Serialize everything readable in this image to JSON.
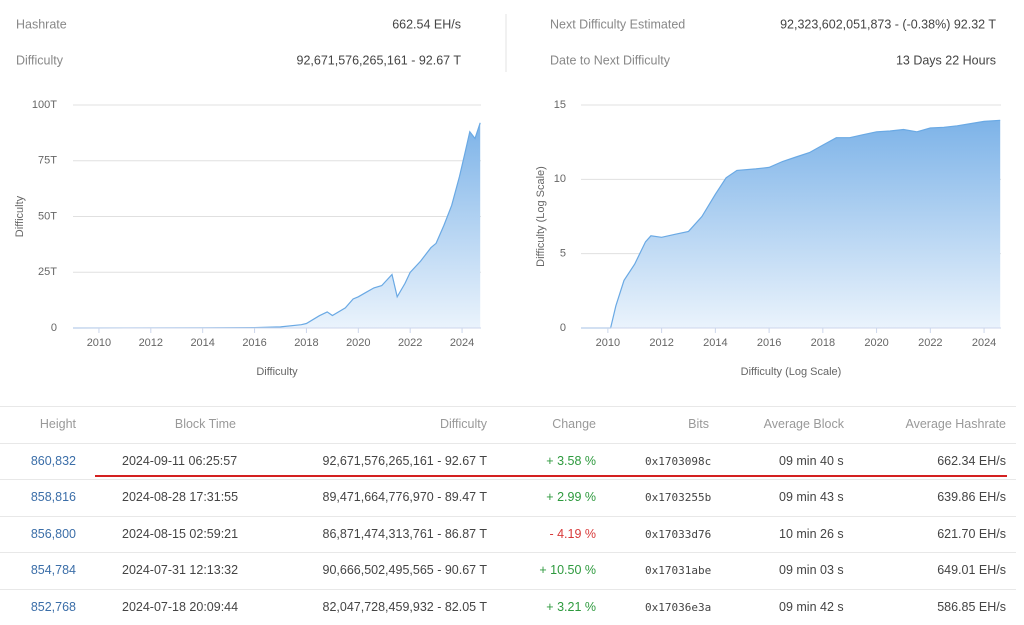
{
  "stats": {
    "hashrate_label": "Hashrate",
    "hashrate_value": "662.54 EH/s",
    "difficulty_label": "Difficulty",
    "difficulty_value": "92,671,576,265,161 - 92.67 T",
    "next_label": "Next Difficulty Estimated",
    "next_value": "92,323,602,051,873 - (-0.38%) 92.32 T",
    "date_label": "Date to Next Difficulty",
    "date_value": "13 Days 22 Hours"
  },
  "chart_data": [
    {
      "type": "area",
      "xlabel": "Difficulty",
      "ylabel": "Difficulty",
      "color": "#6aa9e4",
      "x": [
        2009.0,
        2014.0,
        2016.0,
        2017.0,
        2017.8,
        2018.0,
        2018.5,
        2018.8,
        2019.0,
        2019.5,
        2019.8,
        2020.0,
        2020.3,
        2020.6,
        2020.9,
        2021.3,
        2021.5,
        2021.8,
        2022.0,
        2022.4,
        2022.8,
        2023.0,
        2023.3,
        2023.6,
        2023.9,
        2024.1,
        2024.3,
        2024.5,
        2024.7
      ],
      "values": [
        0,
        0.05,
        0.2,
        0.5,
        1.5,
        2,
        5.5,
        7.2,
        5.6,
        9,
        13,
        14,
        16,
        18,
        19,
        24,
        14,
        20,
        25,
        30,
        36,
        38,
        46,
        55,
        68,
        78,
        88,
        85,
        92
      ],
      "xlim": [
        2009.0,
        2024.73
      ],
      "xticks": [
        2010,
        2012,
        2014,
        2016,
        2018,
        2020,
        2022,
        2024
      ],
      "ylim": [
        0,
        100
      ],
      "yticks": [
        0,
        {
          "value": 25,
          "label": "25T"
        },
        {
          "value": 50,
          "label": "50T"
        },
        {
          "value": 75,
          "label": "75T"
        },
        {
          "value": 100,
          "label": "100T"
        }
      ],
      "grid": true
    },
    {
      "type": "area",
      "xlabel": "Difficulty (Log Scale)",
      "ylabel": "Difficulty (Log Scale)",
      "color": "#6aa9e4",
      "x": [
        2009.0,
        2010.1,
        2010.3,
        2010.6,
        2011.0,
        2011.4,
        2011.6,
        2012.0,
        2012.5,
        2013.0,
        2013.5,
        2014.0,
        2014.4,
        2014.8,
        2015.5,
        2016.0,
        2016.5,
        2017.0,
        2017.5,
        2018.0,
        2018.5,
        2019.0,
        2019.5,
        2020.0,
        2020.5,
        2021.0,
        2021.5,
        2022.0,
        2022.5,
        2023.0,
        2023.5,
        2024.0,
        2024.6
      ],
      "values": [
        0,
        0,
        1.5,
        3.2,
        4.3,
        5.8,
        6.2,
        6.1,
        6.3,
        6.5,
        7.5,
        9.0,
        10.1,
        10.6,
        10.7,
        10.8,
        11.2,
        11.5,
        11.8,
        12.3,
        12.8,
        12.8,
        13.0,
        13.2,
        13.25,
        13.35,
        13.2,
        13.45,
        13.5,
        13.6,
        13.75,
        13.9,
        13.97
      ],
      "xlim": [
        2009.0,
        2024.63
      ],
      "xticks": [
        2010,
        2012,
        2014,
        2016,
        2018,
        2020,
        2022,
        2024
      ],
      "ylim": [
        0,
        15
      ],
      "yticks": [
        0,
        5,
        10,
        15
      ],
      "grid": true
    }
  ],
  "table": {
    "columns": [
      "Height",
      "Block Time",
      "Difficulty",
      "Change",
      "Bits",
      "Average Block",
      "Average Hashrate"
    ],
    "rows": [
      [
        "860,832",
        "2024-09-11 06:25:57",
        "92,671,576,265,161 - 92.67 T",
        "+ 3.58 %",
        "0x1703098c",
        "09 min 40 s",
        "662.34 EH/s"
      ],
      [
        "858,816",
        "2024-08-28 17:31:55",
        "89,471,664,776,970 - 89.47 T",
        "+ 2.99 %",
        "0x1703255b",
        "09 min 43 s",
        "639.86 EH/s"
      ],
      [
        "856,800",
        "2024-08-15 02:59:21",
        "86,871,474,313,761 - 86.87 T",
        "- 4.19 %",
        "0x17033d76",
        "10 min 26 s",
        "621.70 EH/s"
      ],
      [
        "854,784",
        "2024-07-31 12:13:32",
        "90,666,502,495,565 - 90.67 T",
        "+ 10.50 %",
        "0x17031abe",
        "09 min 03 s",
        "649.01 EH/s"
      ],
      [
        "852,768",
        "2024-07-18 20:09:44",
        "82,047,728,459,932 - 82.05 T",
        "+ 3.21 %",
        "0x17036e3a",
        "09 min 42 s",
        "586.85 EH/s"
      ]
    ]
  }
}
